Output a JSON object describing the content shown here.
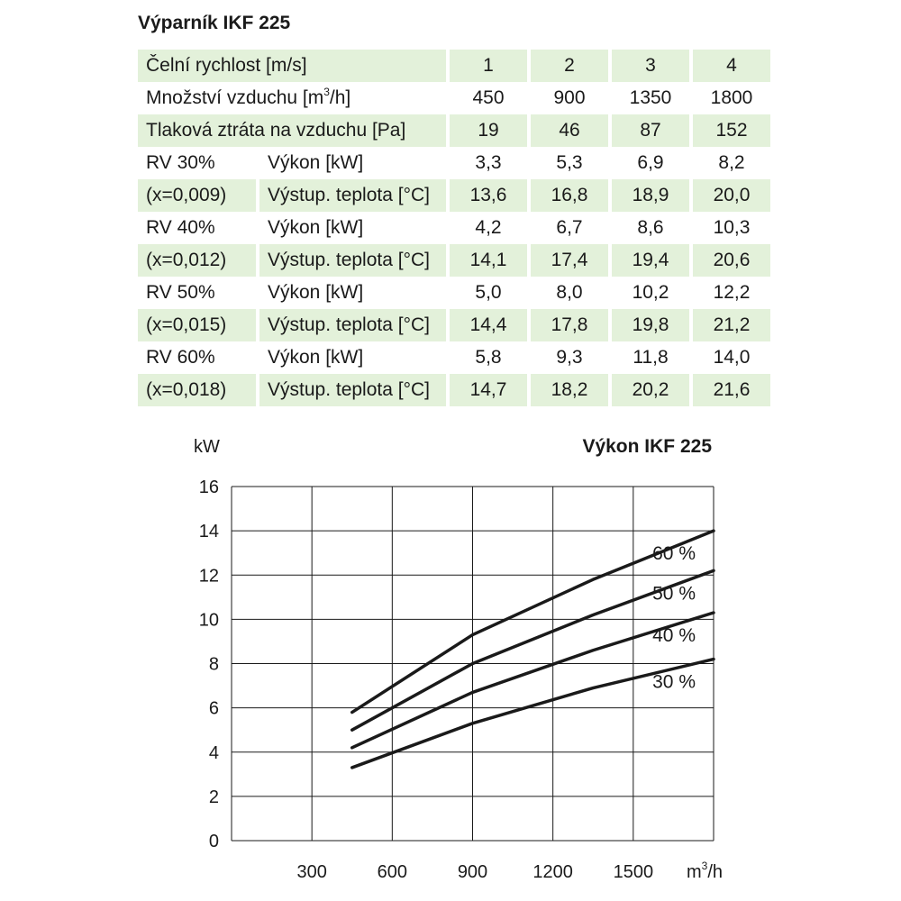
{
  "title": "Výparník IKF 225",
  "table": {
    "velocity": {
      "label": "Čelní rychlost [m/s]",
      "values": [
        "1",
        "2",
        "3",
        "4"
      ]
    },
    "airflow": {
      "label_pre": "Množství vzduchu [m",
      "label_sup": "3",
      "label_post": "/h]",
      "values": [
        "450",
        "900",
        "1350",
        "1800"
      ]
    },
    "pressure": {
      "label": "Tlaková ztráta na vzduchu [Pa]",
      "values": [
        "19",
        "46",
        "87",
        "152"
      ]
    },
    "groups": [
      {
        "rv": "RV 30%",
        "x": "(x=0,009)",
        "power_label": "Výkon [kW]",
        "temp_label": "Výstup. teplota [°C]",
        "power": [
          "3,3",
          "5,3",
          "6,9",
          "8,2"
        ],
        "temp": [
          "13,6",
          "16,8",
          "18,9",
          "20,0"
        ]
      },
      {
        "rv": "RV 40%",
        "x": "(x=0,012)",
        "power_label": "Výkon [kW]",
        "temp_label": "Výstup. teplota [°C]",
        "power": [
          "4,2",
          "6,7",
          "8,6",
          "10,3"
        ],
        "temp": [
          "14,1",
          "17,4",
          "19,4",
          "20,6"
        ]
      },
      {
        "rv": "RV 50%",
        "x": "(x=0,015)",
        "power_label": "Výkon [kW]",
        "temp_label": "Výstup. teplota [°C]",
        "power": [
          "5,0",
          "8,0",
          "10,2",
          "12,2"
        ],
        "temp": [
          "14,4",
          "17,8",
          "19,8",
          "21,2"
        ]
      },
      {
        "rv": "RV 60%",
        "x": "(x=0,018)",
        "power_label": "Výkon [kW]",
        "temp_label": "Výstup. teplota [°C]",
        "power": [
          "5,8",
          "9,3",
          "11,8",
          "14,0"
        ],
        "temp": [
          "14,7",
          "18,2",
          "20,2",
          "21,6"
        ]
      }
    ]
  },
  "chart_data": {
    "type": "line",
    "title": "Výkon IKF 225",
    "ylabel": "kW",
    "xlabel_pre": "m",
    "xlabel_sup": "3",
    "xlabel_post": "/h",
    "xlim": [
      0,
      1800
    ],
    "ylim": [
      0,
      16
    ],
    "x_ticks": [
      300,
      600,
      900,
      1200,
      1500
    ],
    "y_ticks": [
      0,
      2,
      4,
      6,
      8,
      10,
      12,
      14,
      16
    ],
    "grid": true,
    "x": [
      450,
      900,
      1350,
      1800
    ],
    "series": [
      {
        "name": "30 %",
        "values": [
          3.3,
          5.3,
          6.9,
          8.2
        ]
      },
      {
        "name": "40 %",
        "values": [
          4.2,
          6.7,
          8.6,
          10.3
        ]
      },
      {
        "name": "50 %",
        "values": [
          5.0,
          8.0,
          10.2,
          12.2
        ]
      },
      {
        "name": "60 %",
        "values": [
          5.8,
          9.3,
          11.8,
          14.0
        ]
      }
    ],
    "line_color": "#1a1a1a"
  }
}
